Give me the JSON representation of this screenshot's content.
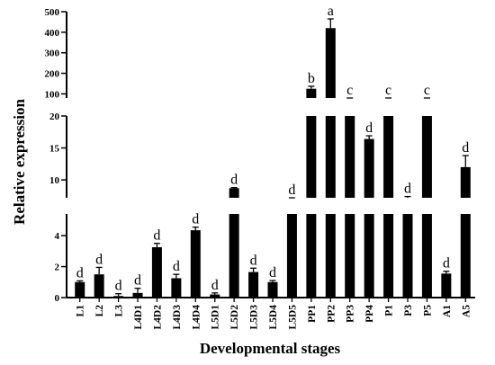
{
  "chart_data": {
    "type": "bar",
    "xlabel": "Developmental stages",
    "ylabel": "Relative expression",
    "broken_axis": true,
    "segments": [
      {
        "ylim": [
          0,
          5.4
        ],
        "ticks": [
          "0",
          "2",
          "4"
        ]
      },
      {
        "ylim": [
          7.2,
          20
        ],
        "ticks": [
          "10",
          "15",
          "20"
        ]
      },
      {
        "ylim": [
          80,
          500
        ],
        "ticks": [
          "100",
          "200",
          "300",
          "400",
          "500"
        ]
      }
    ],
    "categories": [
      "L1",
      "L2",
      "L3",
      "L4D1",
      "L4D2",
      "L4D3",
      "L4D4",
      "L5D1",
      "L5D2",
      "L5D3",
      "L5D4",
      "L5D5",
      "PP1",
      "PP2",
      "PP3",
      "PP4",
      "P1",
      "P3",
      "P5",
      "A1",
      "A5"
    ],
    "values": [
      1.0,
      1.5,
      0.1,
      0.3,
      3.25,
      1.25,
      4.35,
      0.2,
      8.7,
      1.65,
      1.0,
      6.6,
      125,
      420,
      65,
      16.4,
      70,
      6.6,
      65,
      1.55,
      12.0
    ],
    "errors": [
      0.08,
      0.45,
      0.15,
      0.3,
      0.25,
      0.25,
      0.2,
      0.1,
      0.1,
      0.25,
      0.1,
      0.4,
      12,
      45,
      5,
      0.5,
      5,
      0.8,
      15,
      0.15,
      1.8
    ],
    "significance": [
      "d",
      "d",
      "d",
      "d",
      "d",
      "d",
      "d",
      "d",
      "d",
      "d",
      "d",
      "d",
      "b",
      "a",
      "c",
      "d",
      "c",
      "d",
      "c",
      "d",
      "d"
    ],
    "bar_color": "#000000",
    "grid": false
  }
}
